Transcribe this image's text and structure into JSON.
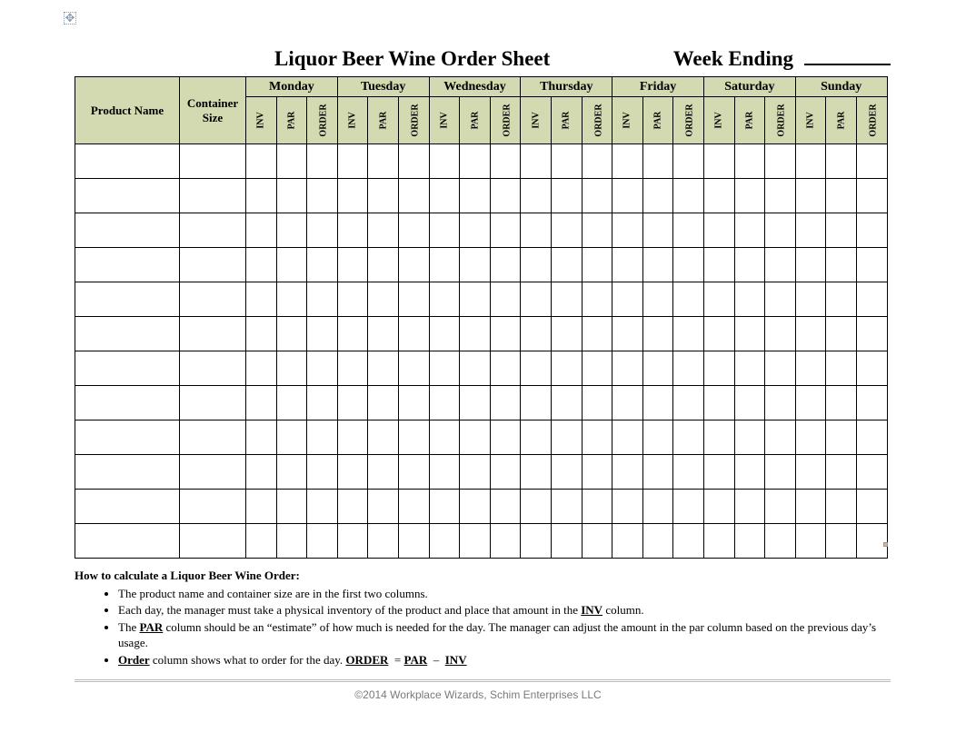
{
  "title": "Liquor Beer Wine Order Sheet",
  "week_ending_label": "Week Ending",
  "columns": {
    "product": "Product Name",
    "container": "Container Size",
    "sub_labels": [
      "INV",
      "PAR",
      "ORDER"
    ]
  },
  "days": [
    "Monday",
    "Tuesday",
    "Wednesday",
    "Thursday",
    "Friday",
    "Saturday",
    "Sunday"
  ],
  "body_row_count": 12,
  "instructions": {
    "heading": "How to calculate a Liquor Beer Wine Order:",
    "bullets_html": [
      "The product name and container size are in the first two columns.",
      "Each day, the manager must take a physical inventory of the product and place that amount in the <span class='b u'>INV</span> column.",
      "The <span class='b u'>PAR</span> column should be an “estimate” of how much is needed for the day. The manager can adjust the amount in the par column based on the previous day’s usage.",
      "<span class='b u'>Order</span> column shows what to order for the day. <span class='b u'>ORDER</span> &nbsp;=&nbsp;<span class='b u'>PAR</span> &nbsp;–&nbsp; <span class='b u'>INV</span>"
    ]
  },
  "footer": "©2014 Workplace Wizards, Schim Enterprises LLC",
  "colors": {
    "header_bg": "#d3d9b0",
    "border": "#000000",
    "footer_text": "#7a7a7a",
    "footer_rule": "#bcbcbc"
  }
}
